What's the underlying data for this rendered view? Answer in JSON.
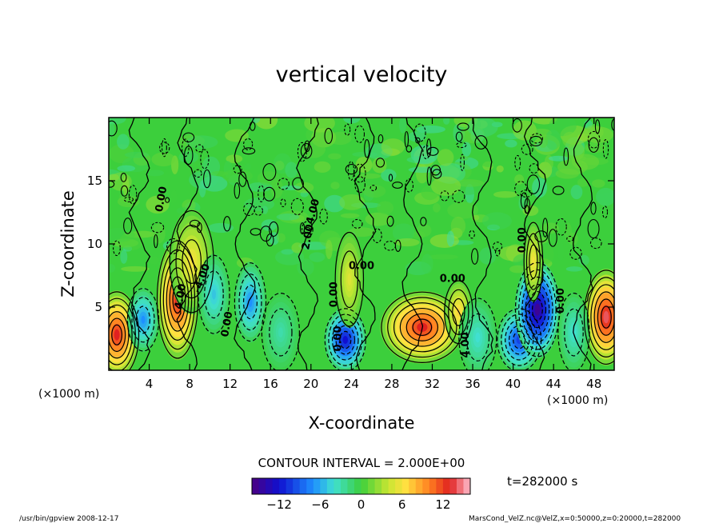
{
  "chart_data": {
    "type": "heatmap",
    "title": "vertical velocity",
    "xlabel": "X-coordinate",
    "ylabel": "Z-coordinate",
    "x_unit_left": "(×1000 m)",
    "x_unit_right": "(×1000 m)",
    "xlim": [
      0,
      50
    ],
    "ylim": [
      0,
      20
    ],
    "xticks": [
      4,
      8,
      12,
      16,
      20,
      24,
      28,
      32,
      36,
      40,
      44,
      48
    ],
    "yticks": [
      5,
      10,
      15
    ],
    "contour_interval_text": "CONTOUR INTERVAL = 2.000E+00",
    "colorbar": {
      "min": -16,
      "max": 16,
      "ticks": [
        -12,
        -6,
        0,
        6,
        12
      ]
    },
    "contour_labels": [
      "4.00",
      "-4.00",
      "2.00",
      "0.00",
      "0.00",
      "0.00",
      "0.00",
      "4.00",
      "0.00",
      "0.00",
      "0.00",
      "4.00",
      "0.00"
    ],
    "time_label": "t=282000 s",
    "cells": [
      {
        "x": 0.8,
        "z": 2.8,
        "sx": 1.4,
        "sz": 2.2,
        "w": 13
      },
      {
        "x": 3.4,
        "z": 4.0,
        "sx": 1.0,
        "sz": 1.6,
        "w": -7
      },
      {
        "x": 6.8,
        "z": 5.6,
        "sx": 1.3,
        "sz": 3.0,
        "w": 13
      },
      {
        "x": 8.2,
        "z": 8.6,
        "sx": 1.4,
        "sz": 2.6,
        "w": 6
      },
      {
        "x": 10.4,
        "z": 6.0,
        "sx": 1.0,
        "sz": 2.0,
        "w": -5
      },
      {
        "x": 14.0,
        "z": 5.4,
        "sx": 1.0,
        "sz": 2.0,
        "w": -7
      },
      {
        "x": 17.0,
        "z": 3.0,
        "sx": 1.2,
        "sz": 2.0,
        "w": -3
      },
      {
        "x": 23.4,
        "z": 2.4,
        "sx": 1.3,
        "sz": 1.6,
        "w": -12
      },
      {
        "x": 23.8,
        "z": 7.2,
        "sx": 0.9,
        "sz": 2.4,
        "w": 5
      },
      {
        "x": 31.0,
        "z": 3.4,
        "sx": 2.6,
        "sz": 1.8,
        "w": 13
      },
      {
        "x": 34.6,
        "z": 4.6,
        "sx": 0.9,
        "sz": 1.6,
        "w": 7
      },
      {
        "x": 36.5,
        "z": 2.6,
        "sx": 1.2,
        "sz": 2.0,
        "w": -4
      },
      {
        "x": 40.6,
        "z": 2.4,
        "sx": 1.4,
        "sz": 1.6,
        "w": -10
      },
      {
        "x": 42.4,
        "z": 4.8,
        "sx": 1.4,
        "sz": 2.4,
        "w": -15
      },
      {
        "x": 42.0,
        "z": 8.6,
        "sx": 0.6,
        "sz": 2.0,
        "w": 6
      },
      {
        "x": 49.2,
        "z": 4.2,
        "sx": 1.4,
        "sz": 2.4,
        "w": 14
      },
      {
        "x": 46.0,
        "z": 3.0,
        "sx": 1.0,
        "sz": 2.0,
        "w": -4
      }
    ]
  },
  "footer": {
    "left": "/usr/bin/gpview   2008-12-17",
    "right": "MarsCond_VelZ.nc@VelZ,x=0:50000,z=0:20000,t=282000"
  }
}
